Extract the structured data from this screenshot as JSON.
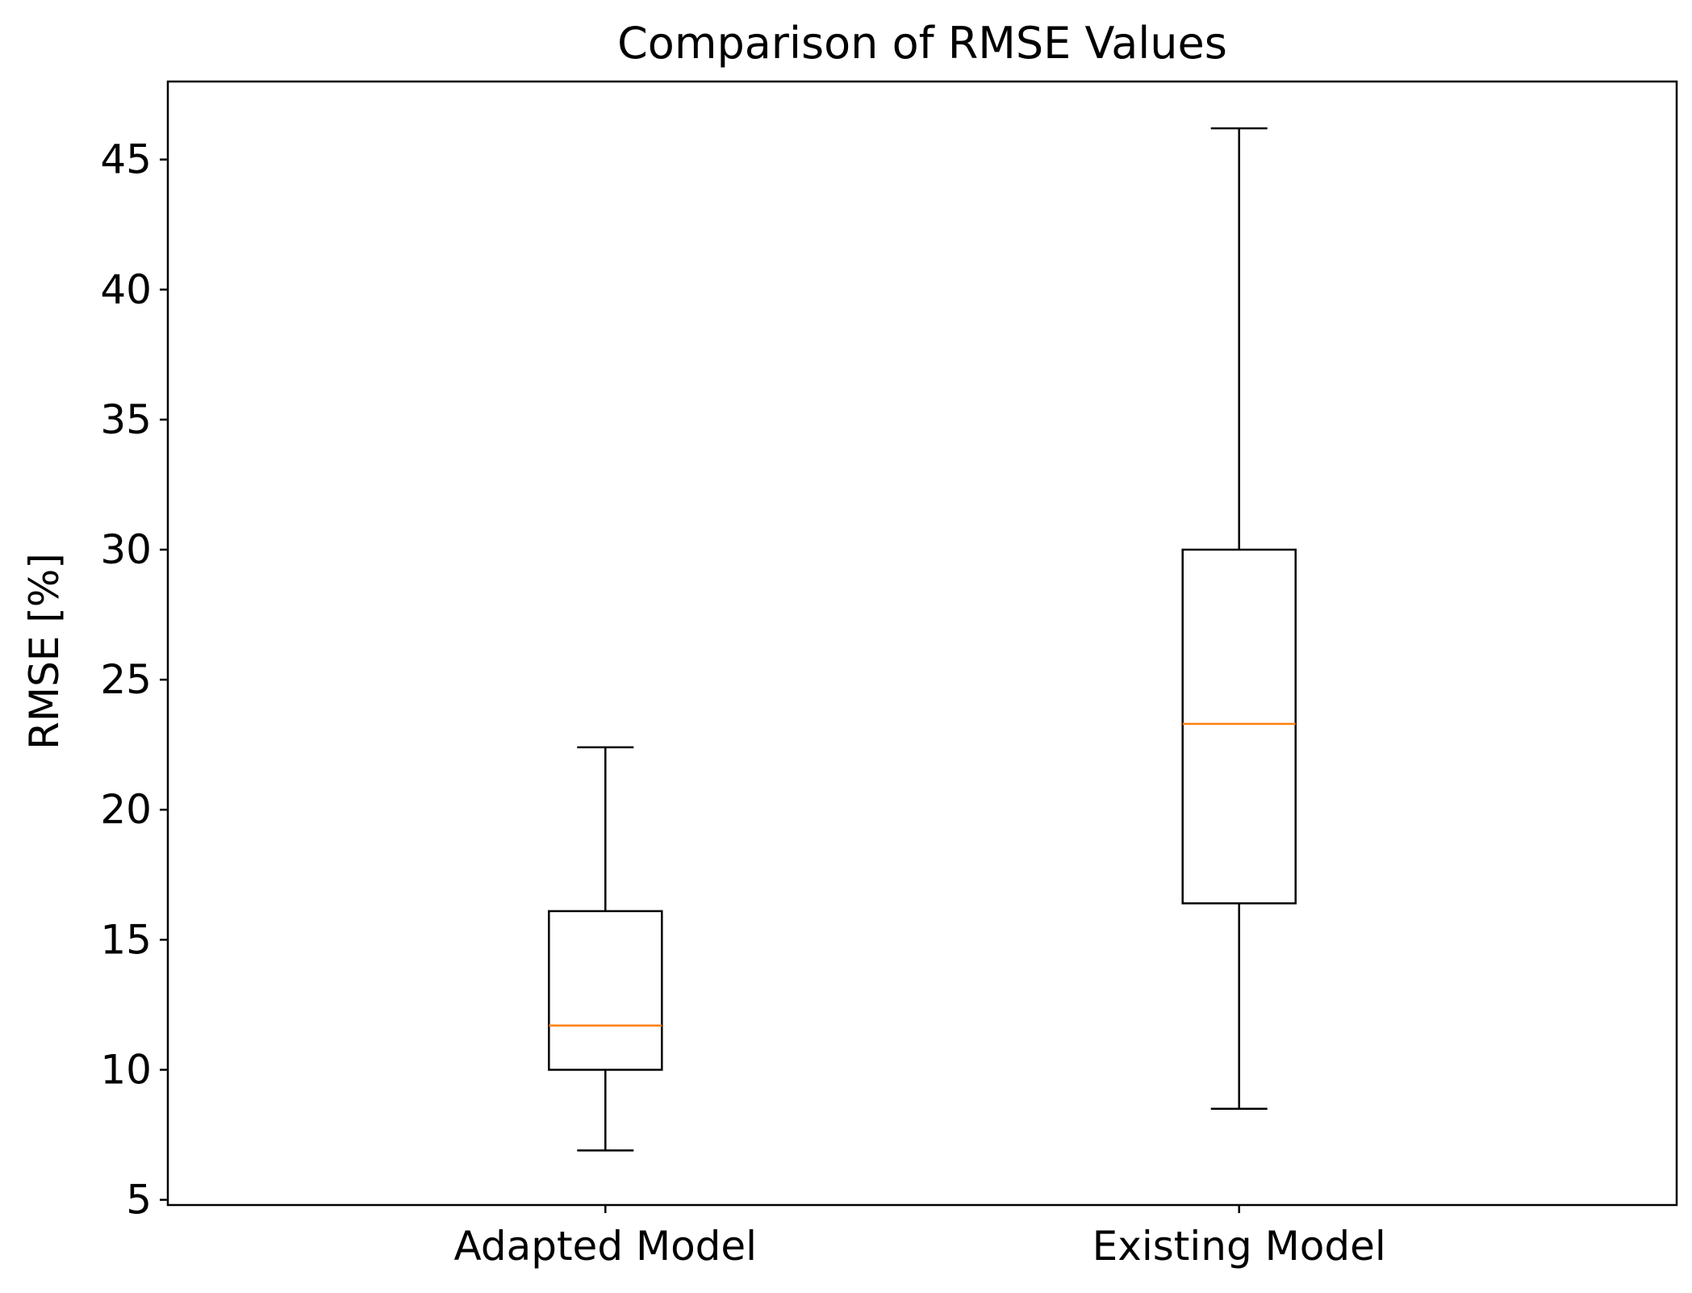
{
  "chart_data": {
    "type": "boxplot",
    "title": "Comparison of RMSE Values",
    "xlabel": "",
    "ylabel": "RMSE [%]",
    "ylim": [
      4.8,
      48
    ],
    "yticks": [
      5,
      10,
      15,
      20,
      25,
      30,
      35,
      40,
      45
    ],
    "categories": [
      "Adapted Model",
      "Existing Model"
    ],
    "boxes": [
      {
        "category": "Adapted Model",
        "whisker_low": 6.9,
        "q1": 10.0,
        "median": 11.7,
        "q3": 16.1,
        "whisker_high": 22.4
      },
      {
        "category": "Existing Model",
        "whisker_low": 8.5,
        "q1": 16.4,
        "median": 23.3,
        "q3": 30.0,
        "whisker_high": 46.2
      }
    ],
    "grid": false,
    "colors": {
      "box": "#000000",
      "median": "#ff7f0e"
    }
  }
}
